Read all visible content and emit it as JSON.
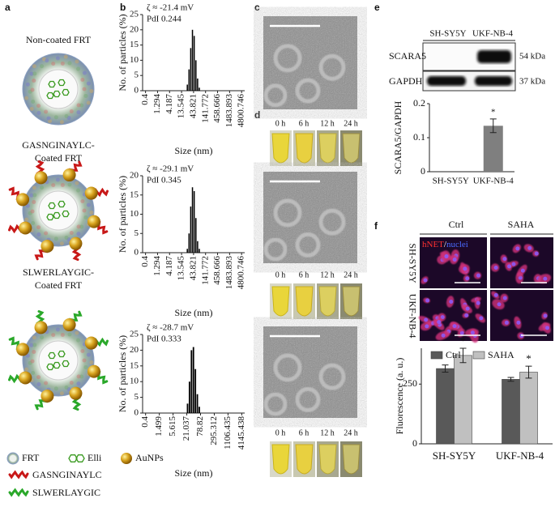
{
  "panel_labels": [
    "a",
    "b",
    "c",
    "d",
    "e",
    "f"
  ],
  "panel_a": {
    "particles": [
      [
        "Non-coated FRT"
      ],
      [
        "GASNGINAYLC-",
        "Coated FRT"
      ],
      [
        "SLWERLAYGIC-",
        "Coated FRT"
      ]
    ],
    "legend": [
      "FRT",
      "Elli",
      "AuNPs",
      "GASNGINAYLC",
      "SLWERLAYGIC"
    ]
  },
  "panel_d": {
    "time_labels": [
      "0 h",
      "6 h",
      "12 h",
      "24 h"
    ]
  },
  "panel_e": {
    "cell_lines": [
      "SH-SY5Y",
      "UKF-NB-4"
    ],
    "proteins": [
      "SCARA5",
      "GAPDH"
    ],
    "weights": [
      "54 kDa",
      "37 kDa"
    ]
  },
  "panel_f": {
    "conditions": [
      "Ctrl",
      "SAHA"
    ],
    "stain": [
      "hNET",
      "/",
      "nuclei"
    ],
    "cell_lines": [
      "SH-SY5Y",
      "UKF-NB-4"
    ]
  },
  "chart_data": [
    {
      "type": "histogram",
      "annotations": [
        "ζ ≈ -21.4 mV",
        "PdI 0.244"
      ],
      "xlabel": "Size (nm)",
      "ylabel": "No. of particles (%)",
      "xscale": "log",
      "xlim": [
        0.3,
        6500
      ],
      "xticks": [
        0.4,
        1.294,
        4.187,
        13.545,
        43.821,
        141.772,
        458.666,
        1483.893,
        4800.746
      ],
      "ylim": [
        0,
        25
      ],
      "yticks": [
        0,
        5,
        10,
        15,
        20,
        25
      ],
      "bins": [
        22.4,
        26.49,
        31.33,
        37.05,
        43.82,
        51.82,
        61.28,
        72.47,
        85.7
      ],
      "values": [
        2,
        7,
        14,
        20,
        18,
        10,
        4,
        1
      ],
      "color": "#000000"
    },
    {
      "type": "histogram",
      "annotations": [
        "ζ ≈ -29.1 mV",
        "PdI 0.345"
      ],
      "xlabel": "Size (nm)",
      "ylabel": "No. of particles (%)",
      "xscale": "log",
      "xlim": [
        0.3,
        6500
      ],
      "xticks": [
        0.4,
        1.294,
        4.187,
        13.545,
        43.821,
        141.772,
        458.666,
        1483.893,
        4800.746
      ],
      "ylim": [
        0,
        20
      ],
      "yticks": [
        0,
        5,
        10,
        15,
        20
      ],
      "bins": [
        22.4,
        26.49,
        31.33,
        37.05,
        43.82,
        51.82,
        61.28,
        72.47,
        85.7
      ],
      "values": [
        1,
        5,
        12,
        17,
        16,
        9,
        3,
        1
      ],
      "color": "#000000"
    },
    {
      "type": "histogram",
      "annotations": [
        "ζ ≈ -28.7 mV",
        "PdI 0.333"
      ],
      "xlabel": "Size (nm)",
      "ylabel": "No. of particles (%)",
      "xscale": "log",
      "xlim": [
        0.3,
        5500
      ],
      "xticks": [
        0.4,
        1.499,
        5.615,
        21.037,
        78.82,
        295.312,
        1106.435,
        4145.438
      ],
      "ylim": [
        0,
        25
      ],
      "yticks": [
        0,
        5,
        10,
        15,
        20,
        25
      ],
      "bins": [
        21.04,
        25.41,
        30.69,
        37.07,
        44.77,
        54.07,
        65.31,
        78.82
      ],
      "values": [
        3,
        10,
        20,
        21,
        14,
        6,
        2
      ],
      "color": "#000000"
    },
    {
      "type": "bar",
      "ylabel": "SCARA5/GAPDH",
      "categories": [
        "SH-SY5Y",
        "UKF-NB-4"
      ],
      "values": [
        0,
        0.135
      ],
      "errors": [
        0,
        0.02
      ],
      "ylim": [
        0,
        0.2
      ],
      "yticks": [
        0,
        0.1,
        0.2
      ],
      "color": "#7f7f7f",
      "annotations": [
        "*"
      ]
    },
    {
      "type": "grouped_bar",
      "ylabel": "Fluorescence (a. u.)",
      "categories": [
        "SH-SY5Y",
        "UKF-NB-4"
      ],
      "series": [
        {
          "name": "Ctrl",
          "color": "#595959",
          "values": [
            315,
            270
          ],
          "errors": [
            15,
            8
          ]
        },
        {
          "name": "SAHA",
          "color": "#c0c0c0",
          "values": [
            370,
            300
          ],
          "errors": [
            30,
            25
          ]
        }
      ],
      "ylim": [
        0,
        400
      ],
      "yticks": [
        0,
        250
      ],
      "annotations": [
        "*",
        "*"
      ]
    }
  ]
}
